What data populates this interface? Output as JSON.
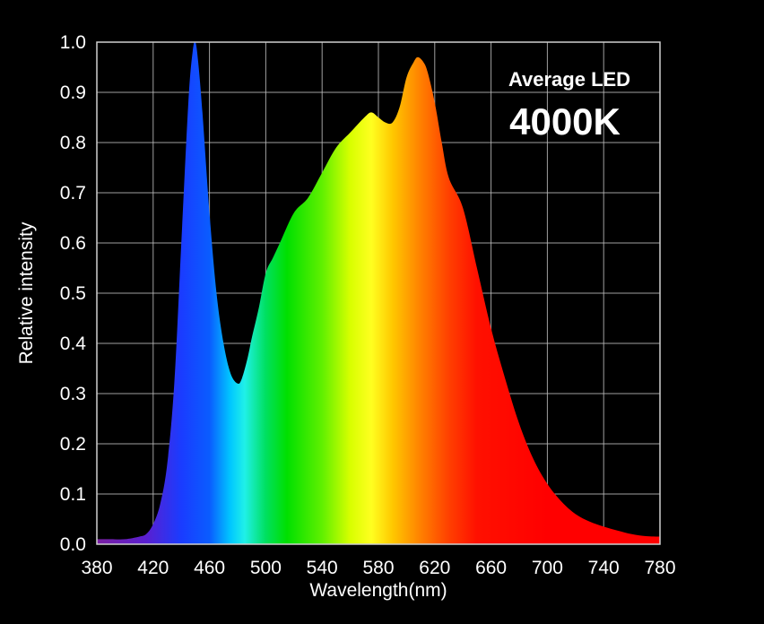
{
  "chart_data": {
    "type": "area",
    "xlabel": "Wavelength(nm)",
    "ylabel": "Relative intensity",
    "xlim": [
      380,
      780
    ],
    "ylim": [
      0,
      1.0
    ],
    "x_ticks": [
      "380",
      "420",
      "460",
      "500",
      "540",
      "580",
      "620",
      "660",
      "700",
      "740",
      "780"
    ],
    "y_ticks": [
      "0.0",
      "0.1",
      "0.2",
      "0.3",
      "0.4",
      "0.5",
      "0.6",
      "0.7",
      "0.8",
      "0.9",
      "1.0"
    ],
    "grid": true,
    "fill": "visible-spectrum gradient",
    "annotations": {
      "subtitle": "Average LED",
      "title": "4000K"
    },
    "x": [
      380,
      390,
      400,
      410,
      415,
      420,
      425,
      430,
      435,
      440,
      445,
      448,
      450,
      452,
      455,
      460,
      465,
      470,
      475,
      480,
      483,
      487,
      490,
      495,
      500,
      505,
      510,
      520,
      530,
      540,
      550,
      560,
      570,
      575,
      580,
      585,
      590,
      595,
      600,
      605,
      608,
      612,
      615,
      620,
      625,
      630,
      640,
      650,
      660,
      670,
      680,
      690,
      700,
      710,
      720,
      730,
      740,
      750,
      760,
      770,
      780
    ],
    "y": [
      0.01,
      0.01,
      0.01,
      0.015,
      0.02,
      0.04,
      0.08,
      0.16,
      0.32,
      0.6,
      0.88,
      0.98,
      1.0,
      0.96,
      0.86,
      0.66,
      0.5,
      0.4,
      0.34,
      0.32,
      0.33,
      0.37,
      0.41,
      0.47,
      0.54,
      0.57,
      0.6,
      0.66,
      0.69,
      0.74,
      0.79,
      0.82,
      0.85,
      0.86,
      0.85,
      0.84,
      0.84,
      0.87,
      0.93,
      0.96,
      0.97,
      0.96,
      0.94,
      0.88,
      0.8,
      0.73,
      0.67,
      0.55,
      0.43,
      0.33,
      0.24,
      0.17,
      0.12,
      0.085,
      0.06,
      0.045,
      0.035,
      0.027,
      0.02,
      0.016,
      0.015
    ],
    "colors": {
      "background": "#000000",
      "grid": "#bdbdbd",
      "text": "#ffffff",
      "spectrum_stops": [
        {
          "x": 380,
          "color": "#7a1fa2"
        },
        {
          "x": 415,
          "color": "#5a1fd0"
        },
        {
          "x": 440,
          "color": "#1a3cff"
        },
        {
          "x": 460,
          "color": "#0a5cff"
        },
        {
          "x": 475,
          "color": "#00c8ff"
        },
        {
          "x": 485,
          "color": "#20f0e8"
        },
        {
          "x": 500,
          "color": "#00e060"
        },
        {
          "x": 515,
          "color": "#00e000"
        },
        {
          "x": 540,
          "color": "#60f000"
        },
        {
          "x": 560,
          "color": "#d8ff00"
        },
        {
          "x": 575,
          "color": "#ffff20"
        },
        {
          "x": 590,
          "color": "#ffc800"
        },
        {
          "x": 610,
          "color": "#ff8000"
        },
        {
          "x": 630,
          "color": "#ff4000"
        },
        {
          "x": 650,
          "color": "#ff1000"
        },
        {
          "x": 700,
          "color": "#ff0000"
        },
        {
          "x": 780,
          "color": "#ff0000"
        }
      ]
    }
  }
}
